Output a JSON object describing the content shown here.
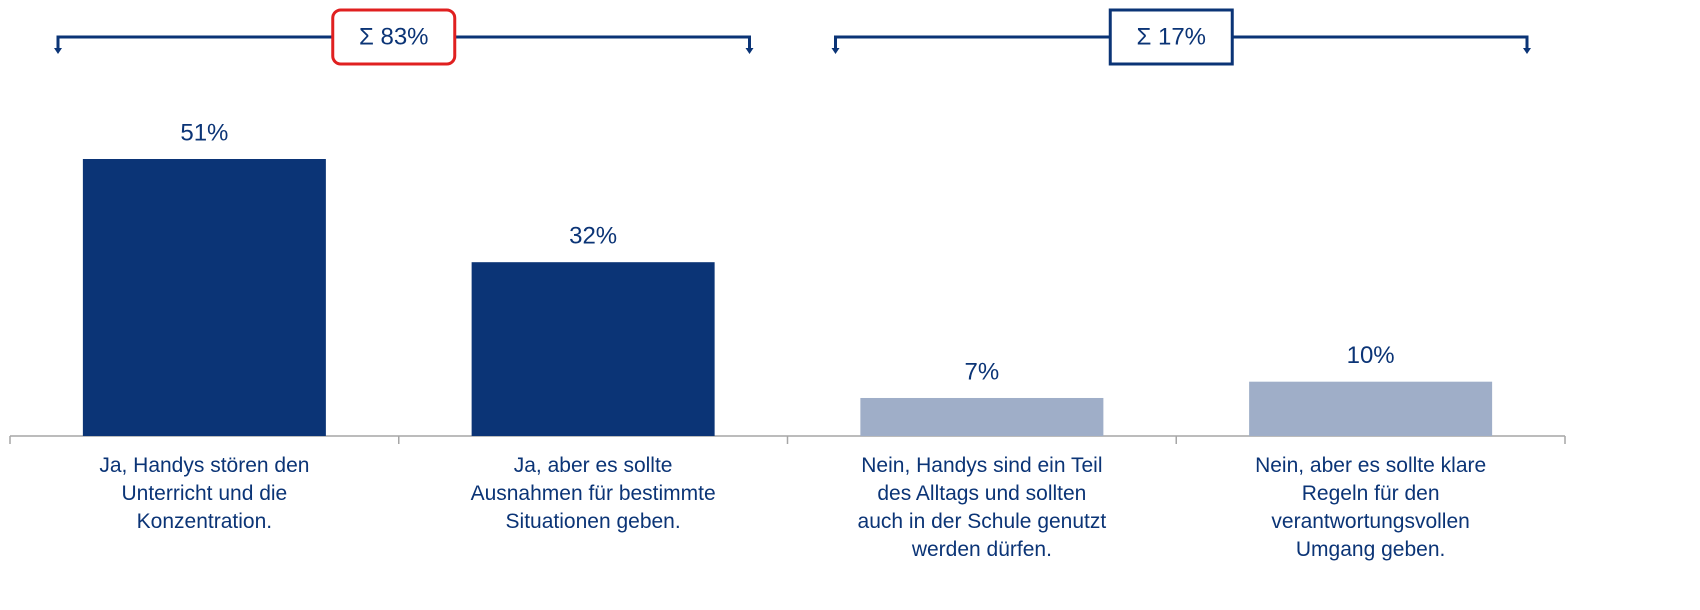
{
  "chart_data": {
    "type": "bar",
    "categories": [
      "Ja, Handys stören den\nUnterricht und die\nKonzentration.",
      "Ja, aber es sollte\nAusnahmen für bestimmte\nSituationen geben.",
      "Nein, Handys sind ein Teil\ndes Alltags und sollten\nauch in der Schule genutzt\nwerden dürfen.",
      "Nein, aber es sollte klare\nRegeln für den\nverantwortungsvollen\nUmgang geben."
    ],
    "values": [
      51,
      32,
      7,
      10
    ],
    "value_labels": [
      "51%",
      "32%",
      "7%",
      "10%"
    ],
    "colors": [
      "#0b3476",
      "#0b3476",
      "#9faec8",
      "#9faec8"
    ],
    "groups": [
      {
        "label": "Σ 83%",
        "border_color": "#e02020"
      },
      {
        "label": "Σ 17%",
        "border_color": "#0b3476"
      }
    ]
  }
}
